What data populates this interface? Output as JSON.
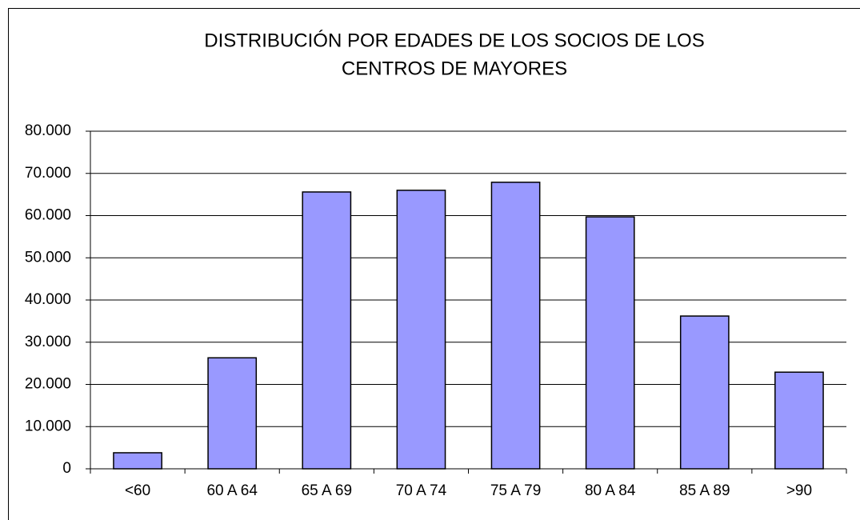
{
  "chart_data": {
    "type": "bar",
    "title": [
      "DISTRIBUCIÓN POR EDADES DE LOS SOCIOS DE LOS",
      "CENTROS DE MAYORES"
    ],
    "categories": [
      "<60",
      "60 A 64",
      "65 A 69",
      "70 A 74",
      "75 A 79",
      "80 A 84",
      "85 A 89",
      ">90"
    ],
    "values": [
      3800,
      26300,
      65600,
      66000,
      67900,
      59700,
      36200,
      22900
    ],
    "color": "#9999ff",
    "ylim": [
      0,
      80000
    ],
    "yticks": [
      0,
      {
        "value": 10000,
        "label": "10.000"
      },
      {
        "value": 20000,
        "label": "20.000"
      },
      {
        "value": 30000,
        "label": "30.000"
      },
      {
        "value": 40000,
        "label": "40.000"
      },
      {
        "value": 50000,
        "label": "50.000"
      },
      {
        "value": 60000,
        "label": "60.000"
      },
      {
        "value": 70000,
        "label": "70.000"
      },
      {
        "value": 80000,
        "label": "80.000"
      }
    ],
    "grid": true
  }
}
